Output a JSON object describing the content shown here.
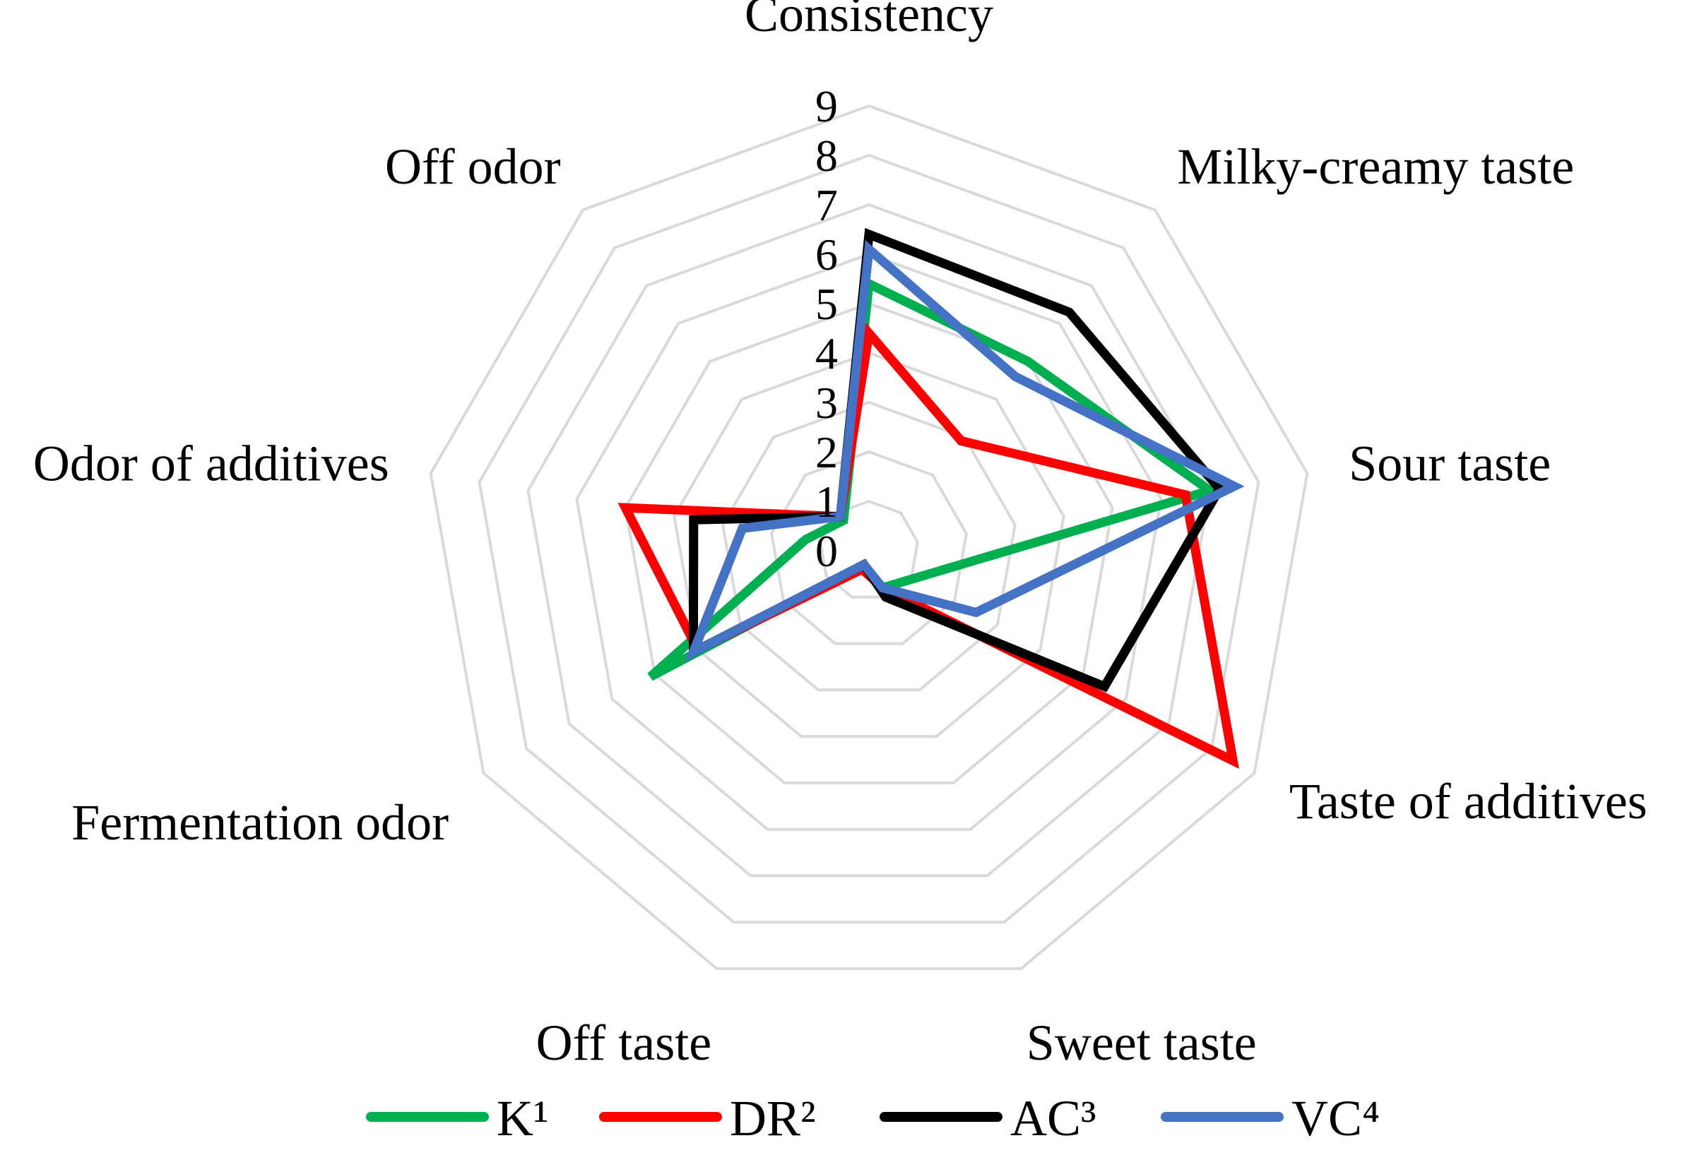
{
  "chart_data": {
    "type": "radar",
    "axes": [
      "Consistency",
      "Milky-creamy taste",
      "Sour taste",
      "Taste of additives",
      "Sweet taste",
      "Off taste",
      "Fermentation odor",
      "Odor of additives",
      "Off odor"
    ],
    "rlim": [
      0,
      9
    ],
    "ticks": [
      "0",
      "1",
      "2",
      "3",
      "4",
      "5",
      "6",
      "7",
      "8",
      "9"
    ],
    "grid": true,
    "legend_position": "bottom",
    "series": [
      {
        "name": "K¹",
        "color": "#00B050",
        "values": [
          5.4,
          5.0,
          7.0,
          1.1,
          0.8,
          0.3,
          5.1,
          1.3,
          0.8
        ]
      },
      {
        "name": "DR²",
        "color": "#FF0000",
        "values": [
          4.4,
          2.9,
          6.5,
          8.5,
          0.8,
          0.4,
          4.0,
          5.0,
          0.9
        ]
      },
      {
        "name": "AC³",
        "color": "#000000",
        "values": [
          6.4,
          6.3,
          7.2,
          5.5,
          1.0,
          0.3,
          4.1,
          3.6,
          0.9
        ]
      },
      {
        "name": "VC⁴",
        "color": "#4472C4",
        "values": [
          6.1,
          4.6,
          7.5,
          2.5,
          0.8,
          0.3,
          4.1,
          2.6,
          0.9
        ]
      }
    ]
  }
}
